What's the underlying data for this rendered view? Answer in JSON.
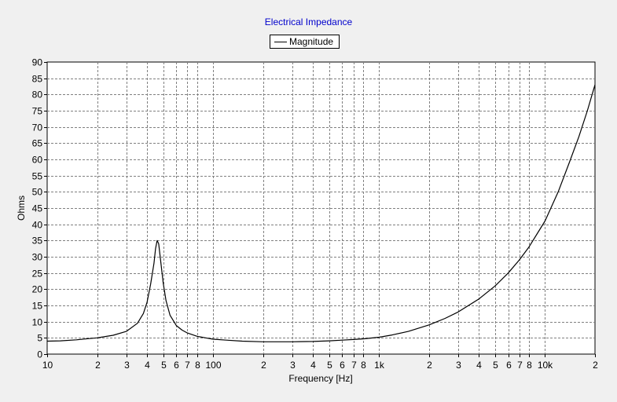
{
  "chart_data": {
    "type": "line",
    "title": "Electrical Impedance",
    "xlabel": "Frequency [Hz]",
    "ylabel": "Ohms",
    "xscale": "log",
    "xlim": [
      10,
      20000
    ],
    "ylim": [
      0,
      90
    ],
    "grid": true,
    "legend_position": "top-center",
    "colors": {
      "title": "#0000cc",
      "series": "#000000",
      "grid": "#808080",
      "plot_bg": "#ffffff",
      "page_bg": "#f0f0f0"
    },
    "x_ticks": [
      {
        "value": 10,
        "label": "10"
      },
      {
        "value": 20,
        "label": "2"
      },
      {
        "value": 30,
        "label": "3"
      },
      {
        "value": 40,
        "label": "4"
      },
      {
        "value": 50,
        "label": "5"
      },
      {
        "value": 60,
        "label": "6"
      },
      {
        "value": 70,
        "label": "7"
      },
      {
        "value": 80,
        "label": "8"
      },
      {
        "value": 100,
        "label": "100"
      },
      {
        "value": 200,
        "label": "2"
      },
      {
        "value": 300,
        "label": "3"
      },
      {
        "value": 400,
        "label": "4"
      },
      {
        "value": 500,
        "label": "5"
      },
      {
        "value": 600,
        "label": "6"
      },
      {
        "value": 700,
        "label": "7"
      },
      {
        "value": 800,
        "label": "8"
      },
      {
        "value": 1000,
        "label": "1k"
      },
      {
        "value": 2000,
        "label": "2"
      },
      {
        "value": 3000,
        "label": "3"
      },
      {
        "value": 4000,
        "label": "4"
      },
      {
        "value": 5000,
        "label": "5"
      },
      {
        "value": 6000,
        "label": "6"
      },
      {
        "value": 7000,
        "label": "7"
      },
      {
        "value": 8000,
        "label": "8"
      },
      {
        "value": 10000,
        "label": "10k"
      },
      {
        "value": 20000,
        "label": "2"
      }
    ],
    "y_ticks": [
      0,
      5,
      10,
      15,
      20,
      25,
      30,
      35,
      40,
      45,
      50,
      55,
      60,
      65,
      70,
      75,
      80,
      85,
      90
    ],
    "series": [
      {
        "name": "Magnitude",
        "x": [
          10,
          12,
          15,
          18,
          20,
          25,
          30,
          35,
          38,
          40,
          42,
          44,
          45,
          46,
          47,
          48,
          50,
          52,
          55,
          60,
          65,
          70,
          80,
          90,
          100,
          120,
          150,
          200,
          250,
          300,
          400,
          500,
          600,
          700,
          800,
          1000,
          1200,
          1500,
          2000,
          2500,
          3000,
          4000,
          5000,
          6000,
          7000,
          8000,
          10000,
          12000,
          14000,
          16000,
          18000,
          20000
        ],
        "y": [
          4.0,
          4.1,
          4.4,
          4.8,
          5.0,
          5.8,
          7.0,
          9.5,
          12.5,
          16.0,
          21.5,
          28.0,
          32.5,
          35.0,
          34.0,
          30.0,
          22.0,
          16.5,
          12.0,
          8.8,
          7.4,
          6.5,
          5.5,
          5.0,
          4.6,
          4.3,
          4.0,
          3.8,
          3.8,
          3.8,
          3.9,
          4.1,
          4.3,
          4.5,
          4.7,
          5.2,
          5.9,
          7.0,
          9.0,
          11.0,
          13.0,
          17.0,
          21.0,
          25.0,
          29.0,
          33.0,
          41.0,
          50.0,
          59.0,
          67.0,
          75.0,
          83.0
        ]
      }
    ]
  }
}
